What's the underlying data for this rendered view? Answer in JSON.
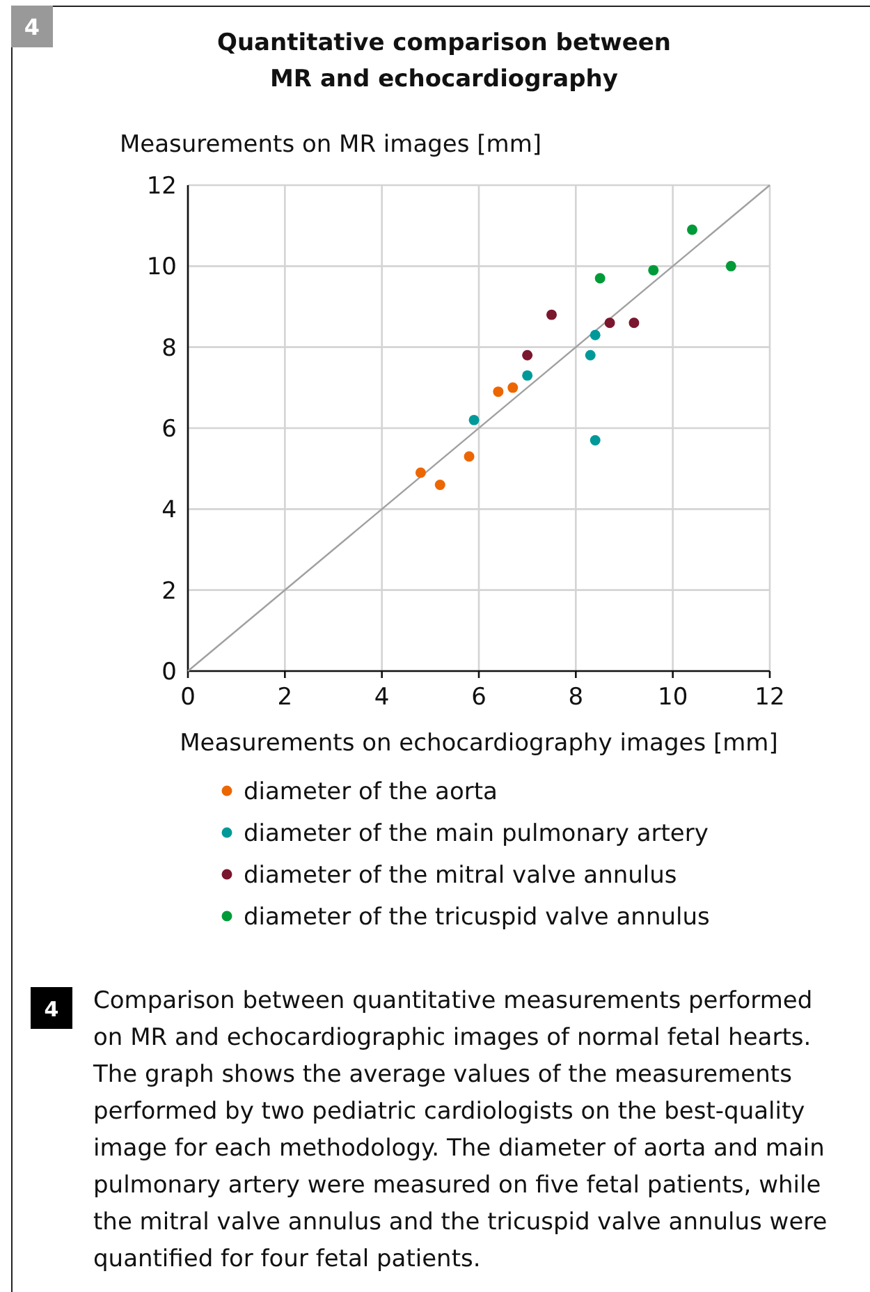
{
  "chart_data": {
    "type": "scatter",
    "title": "Quantitative comparison between MR and echocardiography",
    "xlabel": "Measurements on echocardiography images [mm]",
    "ylabel": "Measurements on MR images [mm]",
    "xlim": [
      0,
      12
    ],
    "ylim": [
      0,
      12
    ],
    "xticks": [
      0,
      2,
      4,
      6,
      8,
      10,
      12
    ],
    "yticks": [
      0,
      2,
      4,
      6,
      8,
      10,
      12
    ],
    "grid": true,
    "legend": "bottom",
    "marker": "circle",
    "series": [
      {
        "type": "line",
        "marker": "none",
        "color": "#a0a0a0",
        "x": [
          0,
          12
        ],
        "values": [
          0,
          12
        ]
      },
      {
        "name": "diameter of the aorta",
        "color": "#ec6602",
        "x": [
          4.8,
          5.2,
          5.8,
          6.4,
          6.7
        ],
        "values": [
          4.9,
          4.6,
          5.3,
          6.9,
          7.0
        ]
      },
      {
        "name": "diameter of the main pulmonary artery",
        "color": "#009999",
        "x": [
          5.9,
          7.0,
          8.3,
          8.4,
          8.4
        ],
        "values": [
          6.2,
          7.3,
          7.8,
          8.3,
          5.7
        ]
      },
      {
        "name": "diameter of the mitral valve annulus",
        "color": "#7a162d",
        "x": [
          7.0,
          7.5,
          8.7,
          9.2
        ],
        "values": [
          7.8,
          8.8,
          8.6,
          8.6
        ]
      },
      {
        "name": "diameter of the tricuspid valve annulus",
        "color": "#009a38",
        "x": [
          8.5,
          9.6,
          10.4,
          11.2
        ],
        "values": [
          9.7,
          9.9,
          10.9,
          10.0
        ]
      }
    ],
    "annotations": [
      "4",
      "4",
      "Comparison between quantitative measurements performed on MR and echocardiographic images of normal fetal hearts. The graph shows the average values of the measurements performed by two pediatric cardiologists on the best-quality image for each methodology. The diameter of aorta and main pulmonary artery were measured on five fetal patients, while the mitral valve annulus and the tricuspid valve annulus were quantified for four fetal patients."
    ]
  }
}
